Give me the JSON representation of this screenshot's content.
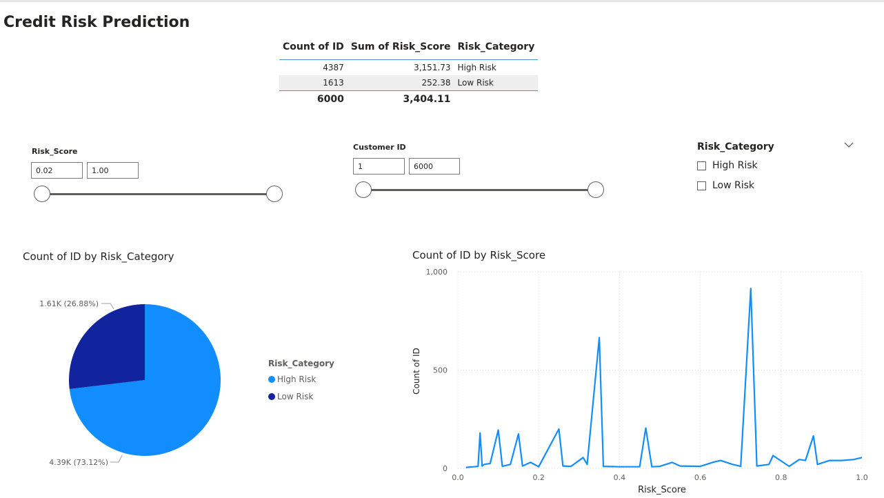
{
  "header": {
    "title": "Credit Risk Prediction"
  },
  "table": {
    "columns": [
      "Count of ID",
      "Sum of Risk_Score",
      "Risk_Category"
    ],
    "rows": [
      {
        "count": "4387",
        "sum": "3,151.73",
        "category": "High Risk"
      },
      {
        "count": "1613",
        "sum": "252.38",
        "category": "Low Risk"
      }
    ],
    "total": {
      "count": "6000",
      "sum": "3,404.11"
    }
  },
  "risk_score_slicer": {
    "title": "Risk_Score",
    "min_value": "0.02",
    "max_value": "1.00",
    "range": [
      0.02,
      1.0
    ]
  },
  "customer_id_slicer": {
    "title": "Customer ID",
    "min_value": "1",
    "max_value": "6000",
    "range": [
      1,
      6000
    ]
  },
  "category_slicer": {
    "title": "Risk_Category",
    "options": [
      "High Risk",
      "Low Risk"
    ]
  },
  "pie": {
    "title": "Count of ID by Risk_Category",
    "legend_title": "Risk_Category",
    "legend": [
      "High Risk",
      "Low Risk"
    ],
    "labels": {
      "low": "1.61K (26.88%)",
      "high": "4.39K (73.12%)"
    }
  },
  "line": {
    "title": "Count of ID by Risk_Score",
    "xlabel": "Risk_Score",
    "ylabel": "Count of ID",
    "y_ticks": [
      "0",
      "500",
      "1,000"
    ],
    "x_ticks": [
      "0.0",
      "0.2",
      "0.4",
      "0.6",
      "0.8",
      "1.0"
    ]
  },
  "colors": {
    "high_risk": "#118DFF",
    "low_risk": "#12239E",
    "line": "#118DFF"
  },
  "chart_data": [
    {
      "type": "pie",
      "title": "Count of ID by Risk_Category",
      "categories": [
        "High Risk",
        "Low Risk"
      ],
      "values": [
        4387,
        1613
      ],
      "percent": [
        73.12,
        26.88
      ],
      "legend_title": "Risk_Category",
      "legend": "right"
    },
    {
      "type": "line",
      "title": "Count of ID by Risk_Score",
      "xlabel": "Risk_Score",
      "ylabel": "Count of ID",
      "xlim": [
        0,
        1
      ],
      "ylim": [
        0,
        1000
      ],
      "grid": true,
      "x": [
        0.02,
        0.04,
        0.05,
        0.055,
        0.06,
        0.065,
        0.08,
        0.1,
        0.11,
        0.13,
        0.15,
        0.16,
        0.18,
        0.2,
        0.25,
        0.26,
        0.28,
        0.31,
        0.32,
        0.35,
        0.36,
        0.4,
        0.45,
        0.465,
        0.48,
        0.5,
        0.53,
        0.55,
        0.6,
        0.63,
        0.65,
        0.68,
        0.7,
        0.725,
        0.74,
        0.77,
        0.78,
        0.82,
        0.845,
        0.86,
        0.88,
        0.89,
        0.92,
        0.95,
        0.98,
        1.0
      ],
      "y": [
        5,
        8,
        10,
        180,
        12,
        20,
        25,
        195,
        10,
        20,
        175,
        12,
        30,
        8,
        200,
        12,
        10,
        55,
        20,
        665,
        10,
        8,
        8,
        205,
        8,
        10,
        30,
        12,
        10,
        30,
        40,
        20,
        10,
        915,
        12,
        20,
        65,
        10,
        45,
        40,
        165,
        20,
        40,
        40,
        45,
        55
      ]
    }
  ]
}
